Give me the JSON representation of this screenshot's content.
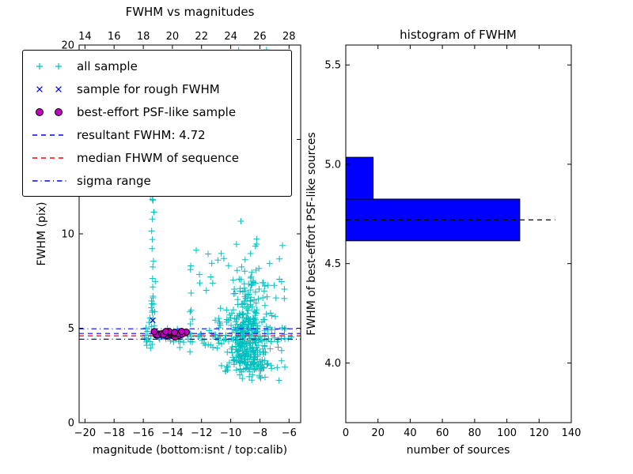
{
  "figure": {
    "bg": "#ffffff"
  },
  "colors": {
    "all_sample": "#00bfbf",
    "rough_sample": "#0000ff",
    "psf_sample_fill": "#bf00bf",
    "psf_sample_edge": "#000000",
    "resultant_line": "#0000ff",
    "median_line": "#ff0000",
    "sigma_line": "#0000ff",
    "hist_fill": "#0000ff",
    "hist_edge": "#000000",
    "axis": "#000000"
  },
  "legend": {
    "items": [
      {
        "label": "all sample",
        "marker": "plus2",
        "color": "#00bfbf"
      },
      {
        "label": "sample for rough FWHM",
        "marker": "x2",
        "color": "#0000ff"
      },
      {
        "label": "best-effort PSF-like sample",
        "marker": "dot2",
        "color": "#bf00bf"
      },
      {
        "label": "resultant FWHM: 4.72",
        "marker": "dashed",
        "color": "#0000ff"
      },
      {
        "label": "median FHWM of sequence",
        "marker": "dashed",
        "color": "#ff0000"
      },
      {
        "label": "sigma range",
        "marker": "dashdot",
        "color": "#0000ff"
      }
    ]
  },
  "chart_data": [
    {
      "type": "scatter",
      "title": "FWHM vs magnitudes",
      "xlabel": "magnitude (bottom:isnt / top:calib)",
      "ylabel": "FWHM (pix)",
      "xlim": [
        -20.4,
        -5.2
      ],
      "ylim": [
        0,
        20
      ],
      "grid": false,
      "x_ticks_bottom": {
        "values": [
          -20,
          -18,
          -16,
          -14,
          -12,
          -10,
          -8,
          -6
        ],
        "labels": [
          "−20",
          "−18",
          "−16",
          "−14",
          "−12",
          "−10",
          "−8",
          "−6"
        ]
      },
      "x_ticks_top": {
        "values_isnt": [
          -20,
          -18,
          -16,
          -14,
          -12,
          -10,
          -8,
          -6
        ],
        "labels": [
          "14",
          "16",
          "18",
          "20",
          "22",
          "24",
          "26",
          "28"
        ]
      },
      "y_ticks": {
        "values": [
          0,
          5,
          10,
          15,
          20
        ],
        "labels": [
          "0",
          "5",
          "10",
          "15",
          "20"
        ]
      },
      "resultant_fwhm_value": 4.72,
      "hlines": [
        {
          "name": "resultant_fwhm",
          "y": 4.72,
          "style": "dashed",
          "color": "#0000ff"
        },
        {
          "name": "median_fwhm",
          "y": 4.6,
          "style": "dashed",
          "color": "#ff0000"
        },
        {
          "name": "sigma_upper",
          "y": 4.97,
          "style": "dashdot",
          "color": "#0000ff"
        },
        {
          "name": "sigma_lower",
          "y": 4.42,
          "style": "dashdot",
          "color": "#0000ff"
        }
      ],
      "series": [
        {
          "name": "all sample",
          "marker": "plus",
          "color": "#00bfbf",
          "seed": 42,
          "clusters": [
            {
              "n": 260,
              "x": [
                "g",
                -8.9,
                0.6
              ],
              "y": [
                "hg",
                2.8,
                2.4
              ]
            },
            {
              "n": 80,
              "x": [
                "g",
                -8.5,
                1.0
              ],
              "y": [
                "u",
                2.2,
                6.0
              ]
            },
            {
              "n": 60,
              "x": [
                "g",
                -9.6,
                1.1
              ],
              "y": [
                "u",
                12.0,
                20.0
              ]
            },
            {
              "n": 110,
              "x": [
                "u",
                -16.1,
                -5.7
              ],
              "y": [
                "g",
                4.45,
                0.3
              ]
            },
            {
              "n": 26,
              "x": [
                "g",
                -15.35,
                0.1
              ],
              "y": [
                "u",
                4.9,
                12.5
              ]
            },
            {
              "n": 50,
              "x": [
                "u",
                -12.8,
                -6.2
              ],
              "y": [
                "u",
                4.8,
                9.5
              ]
            },
            {
              "n": 22,
              "x": [
                "u",
                -10.5,
                -6.6
              ],
              "y": [
                "g",
                2.9,
                0.4
              ]
            }
          ],
          "points": []
        },
        {
          "name": "sample for rough FWHM",
          "marker": "x",
          "color": "#0000ff",
          "seed": 7,
          "clusters": [
            {
              "n": 18,
              "x": [
                "u",
                -15.2,
                -13.1
              ],
              "y": [
                "g",
                4.68,
                0.07
              ]
            }
          ],
          "points": [
            [
              -15.35,
              5.42
            ]
          ]
        },
        {
          "name": "best-effort PSF-like sample",
          "marker": "circle",
          "color": "#bf00bf",
          "seed": 11,
          "clusters": [
            {
              "n": 26,
              "x": [
                "u",
                -15.3,
                -13.0
              ],
              "y": [
                "g",
                4.72,
                0.08
              ]
            }
          ],
          "points": []
        }
      ]
    },
    {
      "type": "bar-horizontal",
      "title": "histogram of FWHM",
      "xlabel": "number of sources",
      "ylabel": "FWHM of best-effort PSF-like sources",
      "xlim": [
        0,
        140
      ],
      "ylim": [
        3.7,
        5.6
      ],
      "grid": false,
      "x_ticks": {
        "values": [
          0,
          20,
          40,
          60,
          80,
          100,
          120,
          140
        ],
        "labels": [
          "0",
          "20",
          "40",
          "60",
          "80",
          "100",
          "120",
          "140"
        ]
      },
      "y_ticks": {
        "values": [
          4.0,
          4.5,
          5.0,
          5.5
        ],
        "labels": [
          "4.0",
          "4.5",
          "5.0",
          "5.5"
        ]
      },
      "bars": [
        {
          "y0": 4.615,
          "y1": 4.825,
          "count": 108
        },
        {
          "y0": 4.825,
          "y1": 5.035,
          "count": 17
        }
      ],
      "dashed_line": {
        "y": 4.72,
        "x0": 0,
        "x1": 130,
        "color": "#000000",
        "style": "dashed"
      }
    }
  ]
}
